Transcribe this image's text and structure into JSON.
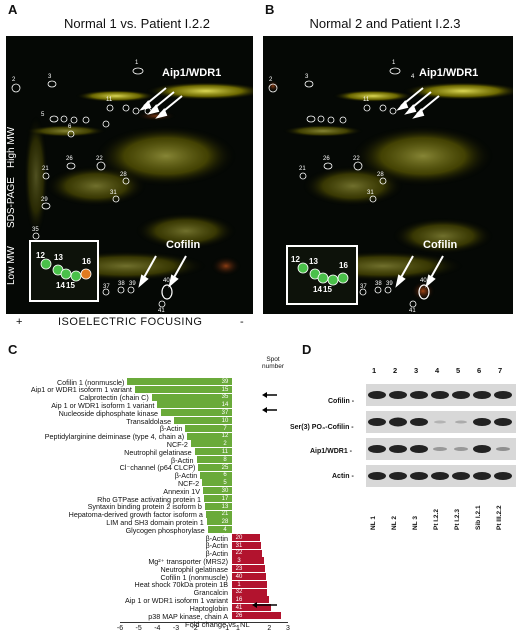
{
  "panels": {
    "A": {
      "letter": "A",
      "title": "Normal 1 vs. Patient I.2.2",
      "aip1_label": "Aip1/WDR1",
      "cofilin_label": "Cofilin",
      "high_mw": "High MW",
      "sds_page": "SDS-PAGE",
      "low_mw": "Low MW",
      "spots": [
        "1",
        "2",
        "3",
        "11",
        "12",
        "13",
        "14",
        "15",
        "16",
        "17",
        "21",
        "22",
        "23",
        "25",
        "26",
        "28",
        "29",
        "30",
        "31",
        "32",
        "35",
        "37",
        "38",
        "39",
        "40",
        "41",
        "5",
        "6",
        "7",
        "8",
        "9",
        "10"
      ]
    },
    "B": {
      "letter": "B",
      "title": "Normal 2 and Patient I.2.3",
      "aip1_label": "Aip1/WDR1",
      "cofilin_label": "Cofilin",
      "spots": [
        "1",
        "2",
        "3",
        "4",
        "11",
        "12",
        "13",
        "14",
        "15",
        "16",
        "21",
        "22",
        "23",
        "25",
        "26",
        "28",
        "30",
        "31",
        "32",
        "37",
        "38",
        "39",
        "40",
        "41",
        "5",
        "6",
        "7",
        "8"
      ]
    },
    "if_axis": {
      "plus": "+",
      "label": "ISOELECTRIC FOCUSING",
      "minus": "-"
    },
    "C": {
      "letter": "C",
      "spot_header": "Spot number",
      "x_axis_label": "Fold change vs. NL",
      "x_ticks": [
        "-6",
        "-5",
        "-4",
        "-3",
        "-2",
        "-1",
        "1",
        "2",
        "3"
      ],
      "colors": {
        "down": "#6aaa3a",
        "up": "#b2132e"
      }
    },
    "D": {
      "letter": "D",
      "lanes": [
        "1",
        "2",
        "3",
        "4",
        "5",
        "6",
        "7"
      ],
      "samples": [
        "NL 1",
        "NL 2",
        "NL 3",
        "Pt I.2.2",
        "Pt I.2.3",
        "Sib I.2.1",
        "Pt III.2.2"
      ],
      "rows": [
        "Cofilin -",
        "Ser(3) PO₄-Cofilin -",
        "Aip1/WDR1 -",
        "Actin -"
      ]
    }
  },
  "chart_data": {
    "type": "bar",
    "orientation": "horizontal",
    "xlabel": "Fold change vs. NL",
    "xlim": [
      -6,
      3
    ],
    "series": [
      {
        "name": "",
        "color": "#6aaa3a",
        "categories": [
          "Cofilin 1 (nonmuscle)",
          "Aip1 or WDR1 isoform 1 variant",
          "Calprotectin (chain C)",
          "Aip 1 or WDR1 isoform 1 variant",
          "Nucleoside diphosphate kinase",
          "Transaldolase",
          "β-Actin",
          "Peptidylarginine deiminase (type 4, chain a)",
          "NCF-2",
          "Neutrophil gelatinase",
          "β-Actin",
          "Cl⁻channel (p64 CLCP)",
          "β-Actin",
          "NCF-2",
          "Annexin 1V",
          "Rho GTPase activating protein 1",
          "Syntaxin binding protein 2 isoform b",
          "Hepatoma-derived growth factor isoform a",
          "LIM and SH3 domain protein 1",
          "Glycogen phosphorylase"
        ],
        "spots": [
          "39",
          "15",
          "35",
          "14",
          "37",
          "10",
          "7",
          "12",
          "2",
          "11",
          "8",
          "25",
          "6",
          "5",
          "30",
          "17",
          "13",
          "21",
          "28",
          "4"
        ],
        "values": [
          -5.6,
          -5.2,
          -4.3,
          -4.0,
          -3.8,
          -3.1,
          -2.5,
          -2.4,
          -2.2,
          -2.0,
          -1.9,
          -1.8,
          -1.7,
          -1.6,
          -1.55,
          -1.5,
          -1.45,
          -1.4,
          -1.35,
          -1.3
        ]
      },
      {
        "name": "",
        "color": "#b2132e",
        "categories": [
          "β-Actin",
          "β-Actin",
          "β-Actin",
          "Mg²⁺ transporter (MRS2)",
          "Neutrophil gelatinase",
          "Cofilin 1 (nonmuscle)",
          "Heat shock 70kDa protein 1B",
          "Grancalcin",
          "Aip 1 or WDR1 isoform 1 variant",
          "Haptoglobin",
          "p38 MAP kinase, chain A"
        ],
        "spots": [
          "20",
          "31",
          "22",
          "3",
          "23",
          "40",
          "1",
          "32",
          "16",
          "41",
          "26"
        ],
        "values": [
          1.5,
          1.55,
          1.6,
          1.7,
          1.75,
          1.8,
          1.85,
          1.9,
          2.0,
          2.1,
          2.6
        ]
      }
    ]
  }
}
